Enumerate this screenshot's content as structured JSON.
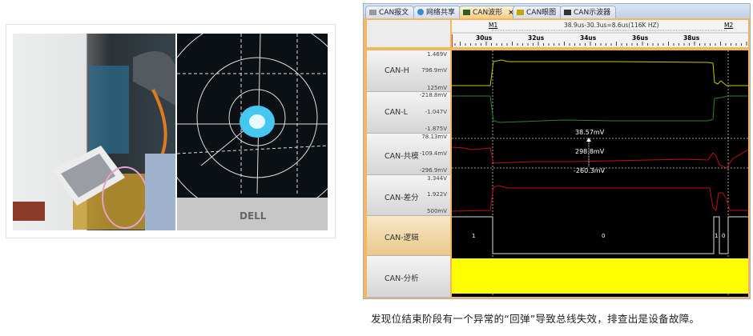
{
  "photos": {
    "monitor_logo": "DELL"
  },
  "tabs": [
    {
      "label": "CAN报文",
      "active": false
    },
    {
      "label": "网络共享",
      "active": false
    },
    {
      "label": "CAN波形",
      "active": true,
      "close": "×"
    },
    {
      "label": "CAN眼图",
      "active": false
    },
    {
      "label": "CAN示波器",
      "active": false
    }
  ],
  "ruler": {
    "marker1": "M1",
    "marker2": "M2",
    "measurement": "38.9us-30.3us=8.6us(116K HZ)",
    "ticks": [
      "30us",
      "32us",
      "34us",
      "36us",
      "38us"
    ]
  },
  "channels": [
    {
      "name": "CAN-H",
      "top": "1.469V",
      "mid": "796.9mV",
      "bottom": "125mV",
      "color": "#c8c800"
    },
    {
      "name": "CAN-L",
      "top": "-218.8mV",
      "mid": "-1.047V",
      "bottom": "-1.875V",
      "color": "#1f8a1f"
    },
    {
      "name": "CAN-共模",
      "top": "78.13mV",
      "mid": "-109.4mV",
      "bottom": "-296.9mV",
      "color": "#c01010"
    },
    {
      "name": "CAN-差分",
      "top": "3.344V",
      "mid": "1.922V",
      "bottom": "500mV",
      "color": "#c01010"
    },
    {
      "name": "CAN-逻辑",
      "selected": true
    },
    {
      "name": "CAN-分析",
      "color": "#ffff00"
    }
  ],
  "measure": {
    "upper": "38.57mV",
    "delta": "298.8mV",
    "lower": "-260.3mV"
  },
  "logic_bits": [
    "1",
    "0",
    "1",
    "0"
  ],
  "caption": "发现位结束阶段有一个异常的“回弹”导致总线失效，排查出是设备故障。"
}
